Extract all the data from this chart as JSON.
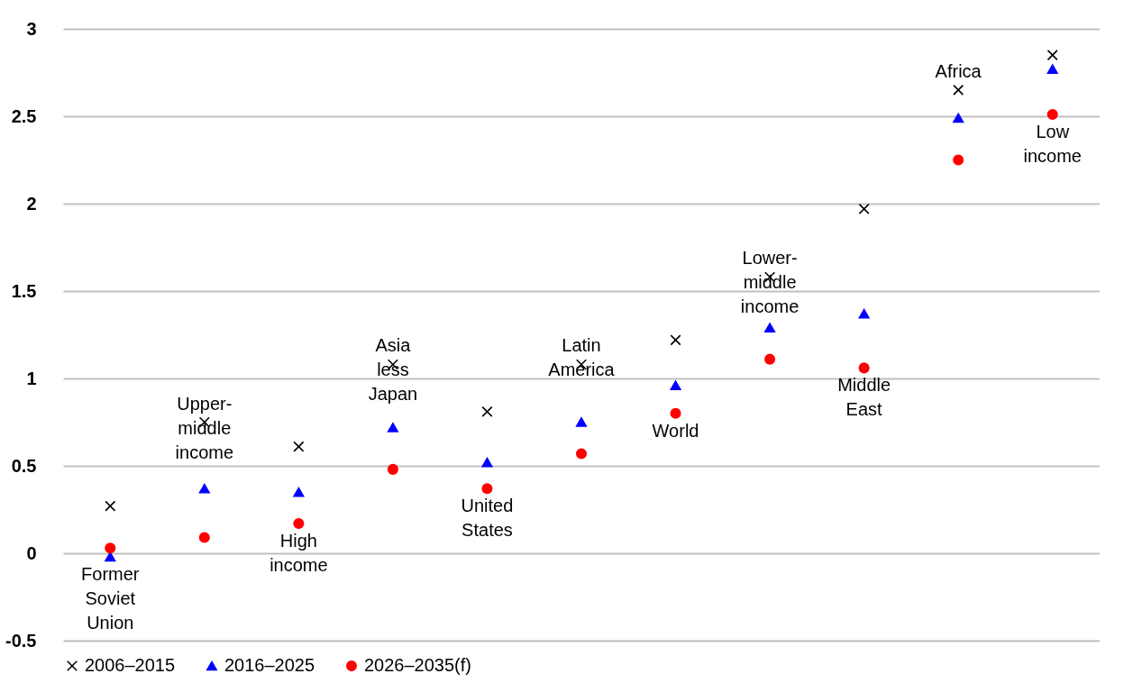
{
  "chart_data": {
    "type": "scatter",
    "categories": [
      "Former Soviet Union",
      "Upper-middle income",
      "High income",
      "Asia less Japan",
      "United States",
      "Latin America",
      "World",
      "Lower-middle income",
      "Middle East",
      "Africa",
      "Low income"
    ],
    "series": [
      {
        "name": "2006–2015",
        "color": "#000000",
        "marker": "cross",
        "values": [
          0.27,
          0.75,
          0.61,
          1.08,
          0.81,
          1.08,
          1.22,
          1.58,
          1.97,
          2.65,
          2.85
        ]
      },
      {
        "name": "2016–2025",
        "color": "#0000ff",
        "marker": "triangle",
        "values": [
          -0.02,
          0.37,
          0.35,
          0.72,
          0.52,
          0.75,
          0.96,
          1.29,
          1.37,
          2.49,
          2.77
        ]
      },
      {
        "name": "2026–2035(f)",
        "color": "#ff0000",
        "marker": "circle",
        "values": [
          0.03,
          0.09,
          0.17,
          0.48,
          0.37,
          0.57,
          0.8,
          1.11,
          1.06,
          2.25,
          2.51
        ]
      }
    ],
    "ylim": [
      -0.5,
      3
    ],
    "yticks": [
      -0.5,
      0,
      0.5,
      1,
      1.5,
      2,
      2.5,
      3
    ],
    "grid": "y",
    "legend": "bottom",
    "tick_labels": "y"
  }
}
